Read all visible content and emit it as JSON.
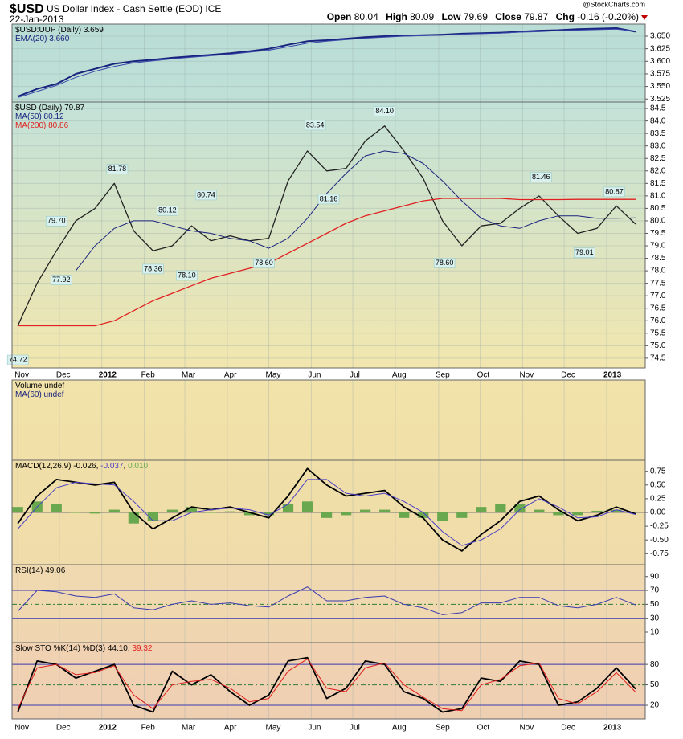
{
  "header": {
    "symbol": "$USD",
    "name": "US Dollar Index - Cash Settle (EOD) ICE",
    "date": "22-Jan-2013",
    "source": "@StockCharts.com",
    "quote": [
      {
        "label": "Open",
        "value": "80.04"
      },
      {
        "label": "High",
        "value": "80.09"
      },
      {
        "label": "Low",
        "value": "79.69"
      },
      {
        "label": "Close",
        "value": "79.87"
      },
      {
        "label": "Chg",
        "value": "-0.16 (-0.20%)"
      }
    ]
  },
  "chart_data": [
    {
      "type": "line",
      "legend": [
        [
          {
            "text": "$USD:UUP (Daily) 3.659",
            "color": "#000000"
          }
        ],
        [
          {
            "text": "EMA(20) 3.660",
            "color": "#1a237e"
          }
        ]
      ],
      "x": [
        0,
        2,
        4,
        6,
        8,
        10,
        12,
        14,
        16,
        18,
        20,
        22,
        24,
        26,
        28,
        30,
        32,
        34,
        36,
        38,
        40,
        42,
        44,
        46,
        48,
        50,
        52,
        54,
        56,
        58,
        60,
        62,
        64
      ],
      "xlim": [
        -0.6,
        65
      ],
      "ylim": [
        3.519,
        3.674
      ],
      "yticks": [
        3.525,
        {
          "value": 3.55,
          "label": "3.550"
        },
        3.575,
        {
          "value": 3.6,
          "label": "3.600"
        },
        3.625,
        {
          "value": 3.65,
          "label": "3.650"
        }
      ],
      "grid": true,
      "series": [
        {
          "name": "$USD:UUP",
          "color": "#1a237e",
          "width": 2,
          "values": [
            3.53,
            3.545,
            3.555,
            3.575,
            3.585,
            3.595,
            3.6,
            3.603,
            3.607,
            3.61,
            3.613,
            3.616,
            3.62,
            3.625,
            3.633,
            3.64,
            3.642,
            3.645,
            3.648,
            3.65,
            3.651,
            3.652,
            3.653,
            3.655,
            3.656,
            3.657,
            3.659,
            3.661,
            3.662,
            3.664,
            3.665,
            3.666,
            3.659
          ]
        },
        {
          "name": "EMA(20)",
          "color": "#3949ab",
          "width": 1,
          "values": [
            3.528,
            3.54,
            3.552,
            3.568,
            3.58,
            3.59,
            3.597,
            3.601,
            3.605,
            3.608,
            3.611,
            3.614,
            3.618,
            3.622,
            3.629,
            3.636,
            3.64,
            3.643,
            3.646,
            3.648,
            3.65,
            3.651,
            3.652,
            3.654,
            3.655,
            3.656,
            3.658,
            3.659,
            3.661,
            3.662,
            3.663,
            3.664,
            3.66
          ]
        }
      ]
    },
    {
      "type": "line",
      "legend": [
        [
          {
            "text": "$USD (Daily) 79.87",
            "color": "#000000"
          }
        ],
        [
          {
            "text": "MA(50) 80.12",
            "color": "#1a237e"
          }
        ],
        [
          {
            "text": "MA(200) 80.86",
            "color": "#e02020"
          }
        ]
      ],
      "x": [
        0,
        2,
        4,
        6,
        8,
        10,
        12,
        14,
        16,
        18,
        20,
        22,
        24,
        26,
        28,
        30,
        32,
        34,
        36,
        38,
        40,
        42,
        44,
        46,
        48,
        50,
        52,
        54,
        56,
        58,
        60,
        62,
        64
      ],
      "xlim": [
        -0.6,
        65
      ],
      "ylim": [
        74.11,
        84.76
      ],
      "xticks": [
        {
          "value": 0,
          "label": "Nov"
        },
        {
          "value": 4.3,
          "label": "Dec"
        },
        {
          "value": 8.7,
          "label": "2012"
        },
        {
          "value": 13.1,
          "label": "Feb"
        },
        {
          "value": 17.3,
          "label": "Mar"
        },
        {
          "value": 21.7,
          "label": "Apr"
        },
        {
          "value": 26,
          "label": "May"
        },
        {
          "value": 30.4,
          "label": "Jun"
        },
        {
          "value": 34.7,
          "label": "Jul"
        },
        {
          "value": 39.1,
          "label": "Aug"
        },
        {
          "value": 43.6,
          "label": "Sep"
        },
        {
          "value": 47.9,
          "label": "Oct"
        },
        {
          "value": 52.3,
          "label": "Nov"
        },
        {
          "value": 56.6,
          "label": "Dec"
        },
        {
          "value": 61,
          "label": "2013"
        }
      ],
      "yticks": [
        74.5,
        {
          "value": 75,
          "label": "75.0"
        },
        75.5,
        {
          "value": 76,
          "label": "76.0"
        },
        76.5,
        {
          "value": 77,
          "label": "77.0"
        },
        77.5,
        {
          "value": 78,
          "label": "78.0"
        },
        78.5,
        {
          "value": 79,
          "label": "79.0"
        },
        79.5,
        {
          "value": 80,
          "label": "80.0"
        },
        80.5,
        {
          "value": 81,
          "label": "81.0"
        },
        81.5,
        {
          "value": 82,
          "label": "82.0"
        },
        82.5,
        {
          "value": 83,
          "label": "83.0"
        },
        83.5,
        {
          "value": 84,
          "label": "84.0"
        },
        84.5
      ],
      "grid": true,
      "series": [
        {
          "name": "$USD",
          "color": "#222222",
          "width": 1.3,
          "values": [
            75.8,
            77.5,
            78.8,
            80.0,
            80.5,
            81.5,
            79.6,
            78.8,
            79.0,
            79.8,
            79.2,
            79.4,
            79.2,
            79.3,
            81.6,
            82.8,
            82.0,
            82.1,
            83.2,
            83.8,
            82.8,
            81.7,
            80.0,
            79.0,
            79.8,
            79.9,
            80.5,
            81.0,
            80.2,
            79.5,
            79.7,
            80.6,
            79.87
          ]
        },
        {
          "name": "MA(50)",
          "color": "#1a237e",
          "width": 1,
          "values": [
            null,
            null,
            null,
            78.0,
            79.0,
            79.7,
            80.0,
            80.0,
            79.8,
            79.6,
            79.5,
            79.3,
            79.2,
            78.9,
            79.3,
            80.1,
            81.1,
            81.9,
            82.6,
            82.8,
            82.7,
            82.3,
            81.6,
            80.8,
            80.1,
            79.8,
            79.7,
            80.0,
            80.2,
            80.2,
            80.1,
            80.1,
            80.12
          ]
        },
        {
          "name": "MA(200)",
          "color": "#e02020",
          "width": 1.3,
          "values": [
            75.8,
            75.8,
            75.8,
            75.8,
            75.8,
            76.0,
            76.4,
            76.8,
            77.1,
            77.4,
            77.7,
            77.9,
            78.1,
            78.3,
            78.7,
            79.1,
            79.5,
            79.9,
            80.2,
            80.4,
            80.6,
            80.8,
            80.9,
            80.9,
            80.9,
            80.9,
            80.85,
            80.85,
            80.85,
            80.86,
            80.86,
            80.86,
            80.86
          ]
        }
      ],
      "annotations": [
        {
          "x": 0,
          "y": 74.72,
          "label": "74.72"
        },
        {
          "x": 4,
          "y": 79.7,
          "label": "79.70"
        },
        {
          "x": 4.5,
          "y": 77.92,
          "label": "77.92"
        },
        {
          "x": 10.3,
          "y": 81.78,
          "label": "81.78"
        },
        {
          "x": 15.5,
          "y": 80.12,
          "label": "80.12"
        },
        {
          "x": 14,
          "y": 78.36,
          "label": "78.36"
        },
        {
          "x": 17.5,
          "y": 78.1,
          "label": "78.10"
        },
        {
          "x": 19.5,
          "y": 80.74,
          "label": "80.74"
        },
        {
          "x": 25.5,
          "y": 78.6,
          "label": "78.60"
        },
        {
          "x": 30.8,
          "y": 83.54,
          "label": "83.54"
        },
        {
          "x": 32.2,
          "y": 81.16,
          "label": "81.16"
        },
        {
          "x": 38,
          "y": 84.1,
          "label": "84.10"
        },
        {
          "x": 44.2,
          "y": 78.6,
          "label": "78.60"
        },
        {
          "x": 54.2,
          "y": 81.46,
          "label": "81.46"
        },
        {
          "x": 58.7,
          "y": 79.01,
          "label": "79.01"
        },
        {
          "x": 61.8,
          "y": 80.87,
          "label": "80.87"
        }
      ]
    },
    {
      "type": "volume",
      "legend": [
        [
          {
            "text": "Volume undef",
            "color": "#000000"
          }
        ],
        [
          {
            "text": "MA(60) undef",
            "color": "#1a237e"
          }
        ]
      ]
    },
    {
      "type": "line",
      "legend": [
        [
          {
            "text": "MACD(12,26,9) ",
            "color": "#000000"
          },
          {
            "text": "-0.026",
            "color": "#000000"
          },
          {
            "text": ", ",
            "color": "#000000"
          },
          {
            "text": "-0.037",
            "color": "#4b3fc8"
          },
          {
            "text": ", ",
            "color": "#000000"
          },
          {
            "text": "0.010",
            "color": "#6aa84f"
          }
        ]
      ],
      "x": [
        0,
        2,
        4,
        6,
        8,
        10,
        12,
        14,
        16,
        18,
        20,
        22,
        24,
        26,
        28,
        30,
        32,
        34,
        36,
        38,
        40,
        42,
        44,
        46,
        48,
        50,
        52,
        54,
        56,
        58,
        60,
        62,
        64
      ],
      "xlim": [
        -0.6,
        65
      ],
      "ylim": [
        -0.95,
        0.95
      ],
      "yticks": [
        -0.75,
        {
          "value": -0.5,
          "label": "-0.50"
        },
        -0.25,
        {
          "value": 0,
          "label": "0.00"
        },
        0.25,
        {
          "value": 0.5,
          "label": "0.50"
        },
        0.75
      ],
      "grid": false,
      "reference_lines": [
        0
      ],
      "series": [
        {
          "name": "Histogram",
          "type": "bar",
          "color": "#6aa84f",
          "values": [
            0.1,
            0.2,
            0.15,
            0,
            -0.02,
            0.05,
            -0.2,
            -0.15,
            0.05,
            0.1,
            0,
            0.02,
            -0.05,
            -0.05,
            0.15,
            0.2,
            -0.1,
            -0.05,
            0.05,
            0.05,
            -0.1,
            -0.1,
            -0.15,
            -0.1,
            0.1,
            0.15,
            0.15,
            0.05,
            -0.05,
            -0.05,
            0.03,
            0.05,
            0.01
          ]
        },
        {
          "name": "MACD",
          "color": "#000000",
          "width": 1.8,
          "values": [
            -0.2,
            0.3,
            0.6,
            0.55,
            0.5,
            0.55,
            0.0,
            -0.3,
            -0.1,
            0.1,
            0.05,
            0.1,
            0.0,
            -0.1,
            0.3,
            0.8,
            0.5,
            0.3,
            0.35,
            0.4,
            0.1,
            -0.1,
            -0.5,
            -0.7,
            -0.4,
            -0.15,
            0.2,
            0.3,
            0.05,
            -0.15,
            -0.05,
            0.1,
            -0.026
          ]
        },
        {
          "name": "Signal",
          "color": "#4b3fc8",
          "width": 1,
          "values": [
            -0.3,
            0.1,
            0.45,
            0.55,
            0.52,
            0.5,
            0.2,
            -0.15,
            -0.15,
            0.0,
            0.05,
            0.08,
            0.05,
            -0.05,
            0.15,
            0.6,
            0.6,
            0.35,
            0.3,
            0.35,
            0.2,
            0.0,
            -0.35,
            -0.6,
            -0.5,
            -0.3,
            0.05,
            0.25,
            0.1,
            -0.1,
            -0.08,
            0.05,
            -0.037
          ]
        }
      ]
    },
    {
      "type": "line",
      "legend": [
        [
          {
            "text": "RSI(14) 49.06",
            "color": "#000000"
          }
        ]
      ],
      "x": [
        0,
        2,
        4,
        6,
        8,
        10,
        12,
        14,
        16,
        18,
        20,
        22,
        24,
        26,
        28,
        30,
        32,
        34,
        36,
        38,
        40,
        42,
        44,
        46,
        48,
        50,
        52,
        54,
        56,
        58,
        60,
        62,
        64
      ],
      "xlim": [
        -0.6,
        65
      ],
      "ylim": [
        -5,
        107
      ],
      "yticks": [
        10,
        30,
        50,
        70,
        90
      ],
      "grid": false,
      "reference_lines": [
        30,
        50,
        70
      ],
      "series": [
        {
          "name": "RSI(14)",
          "color": "#3a3ab0",
          "width": 1,
          "values": [
            40,
            70,
            68,
            62,
            60,
            65,
            45,
            42,
            50,
            55,
            50,
            52,
            48,
            46,
            62,
            75,
            55,
            55,
            60,
            62,
            50,
            45,
            35,
            38,
            52,
            52,
            60,
            60,
            48,
            45,
            50,
            60,
            49.06
          ]
        }
      ]
    },
    {
      "type": "line",
      "legend": [
        [
          {
            "text": "Slow STO %K(14) %D(3) ",
            "color": "#000000"
          },
          {
            "text": "44.10",
            "color": "#000000"
          },
          {
            "text": ", ",
            "color": "#000000"
          },
          {
            "text": "39.32",
            "color": "#e02020"
          }
        ]
      ],
      "x": [
        0,
        2,
        4,
        6,
        8,
        10,
        12,
        14,
        16,
        18,
        20,
        22,
        24,
        26,
        28,
        30,
        32,
        34,
        36,
        38,
        40,
        42,
        44,
        46,
        48,
        50,
        52,
        54,
        56,
        58,
        60,
        62,
        64
      ],
      "xlim": [
        -0.6,
        65
      ],
      "ylim": [
        0,
        112
      ],
      "yticks": [
        20,
        50,
        80
      ],
      "grid": false,
      "reference_lines": [
        20,
        50,
        80
      ],
      "series": [
        {
          "name": "%K(14)",
          "color": "#000000",
          "width": 1.8,
          "values": [
            10,
            85,
            80,
            60,
            70,
            80,
            20,
            10,
            70,
            50,
            65,
            40,
            20,
            35,
            85,
            90,
            30,
            45,
            85,
            80,
            40,
            30,
            10,
            15,
            60,
            55,
            85,
            80,
            20,
            25,
            45,
            75,
            44.1
          ]
        },
        {
          "name": "%D(3)",
          "color": "#e02020",
          "width": 1,
          "values": [
            15,
            75,
            80,
            65,
            68,
            78,
            35,
            15,
            50,
            55,
            58,
            45,
            25,
            30,
            70,
            88,
            45,
            40,
            75,
            82,
            50,
            32,
            15,
            12,
            50,
            58,
            78,
            82,
            30,
            22,
            40,
            68,
            39.32
          ]
        }
      ]
    }
  ]
}
